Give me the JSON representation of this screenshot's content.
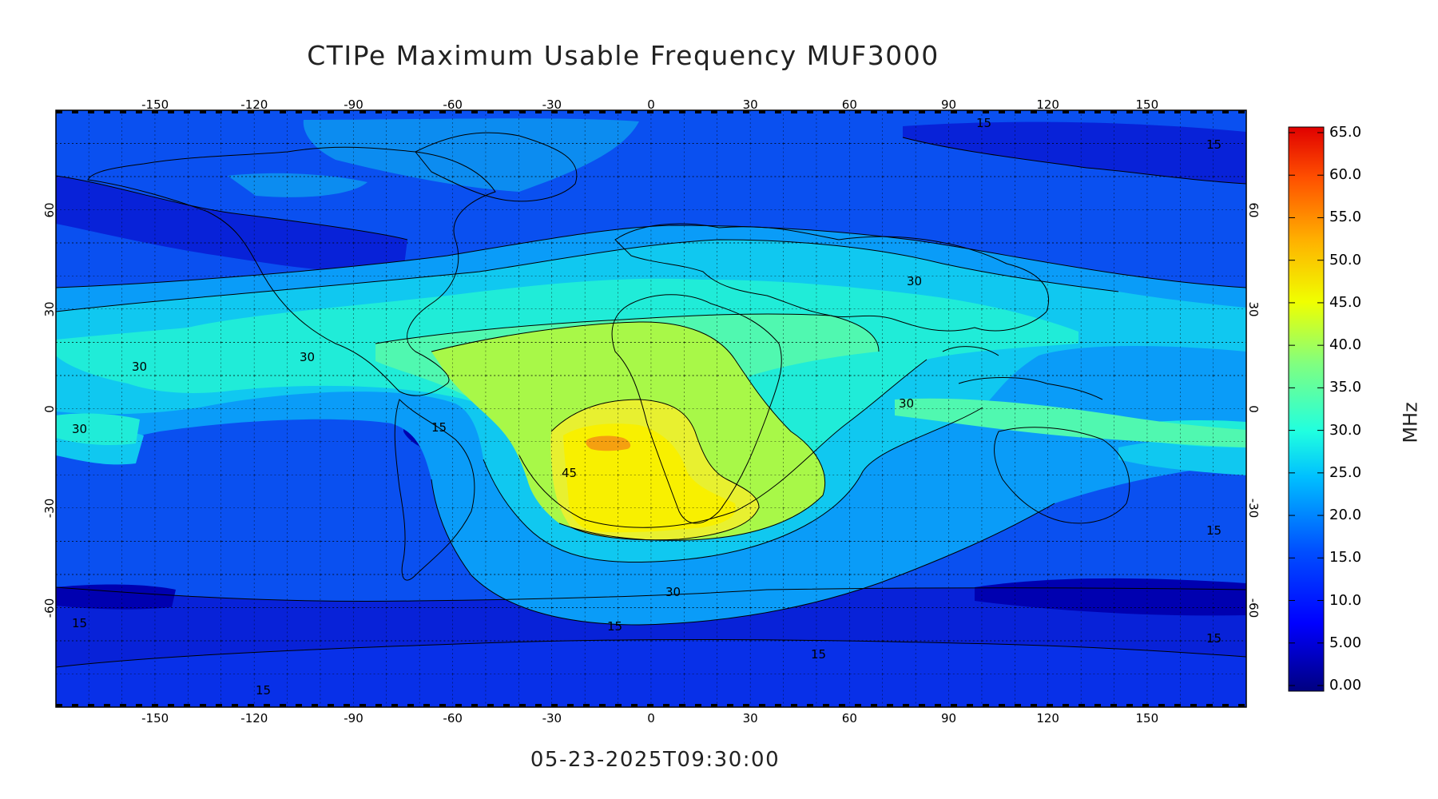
{
  "title": "CTIPe Maximum Usable Frequency MUF3000",
  "timestamp": "05-23-2025T09:30:00",
  "map": {
    "lon_ticks": [
      "-150",
      "-120",
      "-90",
      "-60",
      "-30",
      "0",
      "30",
      "60",
      "90",
      "120",
      "150"
    ],
    "lat_ticks": [
      "60",
      "30",
      "0",
      "-30",
      "-60"
    ],
    "contour_labels": [
      "15",
      "30",
      "30",
      "30",
      "30",
      "30",
      "30",
      "15",
      "15",
      "15",
      "15",
      "15",
      "15",
      "15",
      "45",
      "15"
    ]
  },
  "colorbar": {
    "unit": "MHz",
    "ticks": [
      "65.0",
      "60.0",
      "55.0",
      "50.0",
      "45.0",
      "40.0",
      "35.0",
      "30.0",
      "25.0",
      "20.0",
      "15.0",
      "10.0",
      "5.00",
      "0.00"
    ],
    "colors": [
      "#00007f",
      "#0000c8",
      "#0030ff",
      "#0080ff",
      "#00c8ff",
      "#20f0e0",
      "#60ffa0",
      "#a0ff60",
      "#e0ff20",
      "#ffe000",
      "#ff9e00",
      "#ff5a00",
      "#e00000"
    ]
  }
}
